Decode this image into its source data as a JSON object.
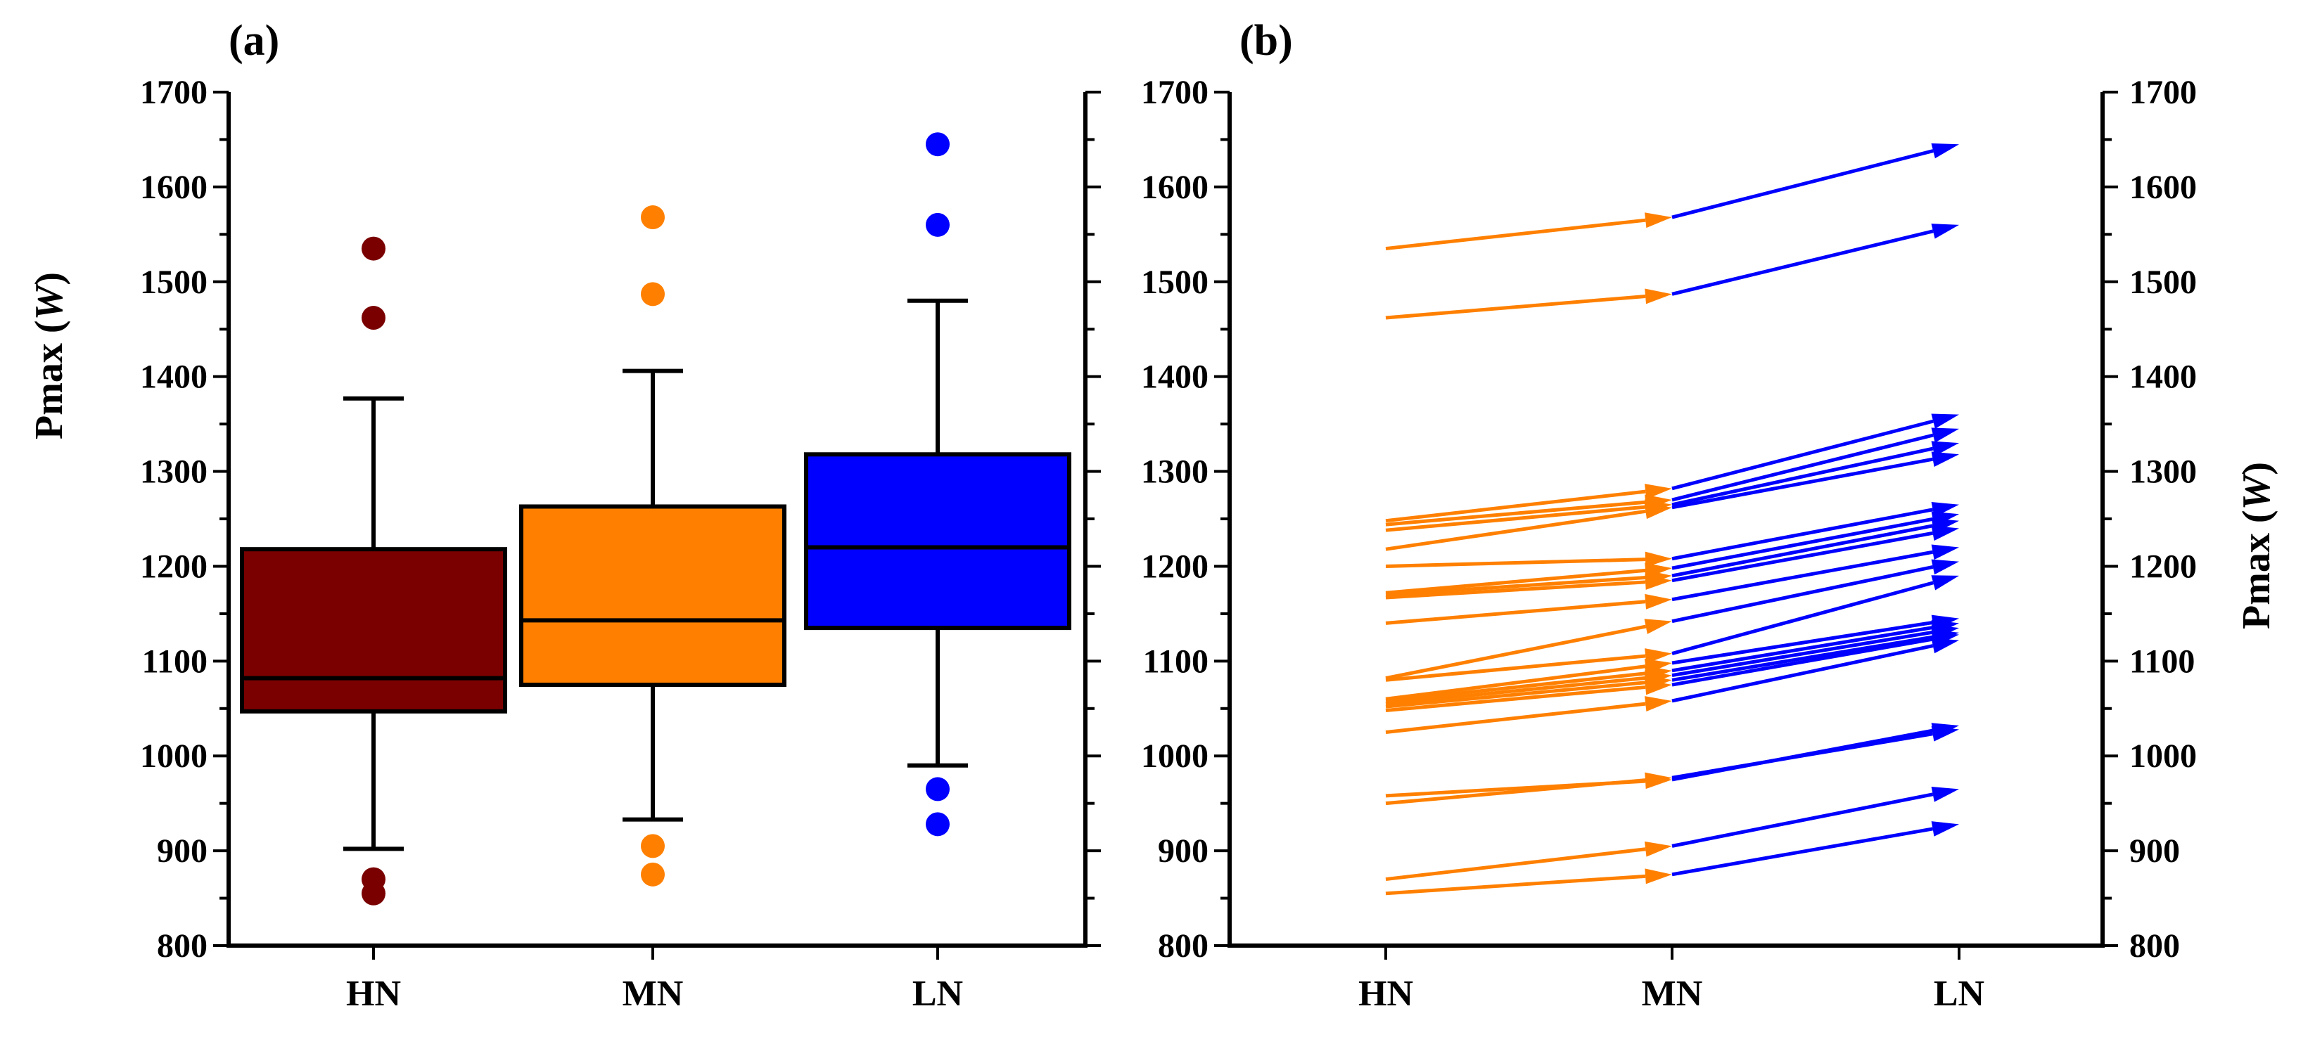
{
  "chart_data": [
    {
      "type": "box",
      "panel_label": "(a)",
      "ylabel_main": "Pmax",
      "ylabel_unit": "W",
      "ylim": [
        800,
        1700
      ],
      "yticks": [
        "800",
        "900",
        "1000",
        "1100",
        "1200",
        "1300",
        "1400",
        "1500",
        "1600",
        "1700"
      ],
      "categories": [
        "HN",
        "MN",
        "LN"
      ],
      "colors": [
        "#7a0000",
        "#ff8000",
        "#0000ff"
      ],
      "boxes": [
        {
          "category": "HN",
          "whisker_low": 902,
          "q1": 1047,
          "median": 1082,
          "q3": 1218,
          "whisker_high": 1377,
          "outliers": [
            1535,
            1462,
            870,
            855
          ]
        },
        {
          "category": "MN",
          "whisker_low": 933,
          "q1": 1075,
          "median": 1143,
          "q3": 1263,
          "whisker_high": 1406,
          "outliers": [
            1568,
            1487,
            905,
            875
          ]
        },
        {
          "category": "LN",
          "whisker_low": 990,
          "q1": 1135,
          "median": 1220,
          "q3": 1318,
          "whisker_high": 1480,
          "outliers": [
            1645,
            1560,
            965,
            928
          ]
        }
      ]
    },
    {
      "type": "line",
      "panel_label": "(b)",
      "ylabel_main": "Pmax",
      "ylabel_unit": "W",
      "ylim": [
        800,
        1700
      ],
      "yticks": [
        "800",
        "900",
        "1000",
        "1100",
        "1200",
        "1300",
        "1400",
        "1500",
        "1600",
        "1700"
      ],
      "categories": [
        "HN",
        "MN",
        "LN"
      ],
      "segment_colors": [
        "#ff8000",
        "#0000ff"
      ],
      "trajectories": [
        [
          1535,
          1568,
          1645
        ],
        [
          1462,
          1487,
          1560
        ],
        [
          1248,
          1282,
          1360
        ],
        [
          1244,
          1270,
          1345
        ],
        [
          1238,
          1265,
          1330
        ],
        [
          1218,
          1262,
          1318
        ],
        [
          1200,
          1208,
          1265
        ],
        [
          1172,
          1198,
          1255
        ],
        [
          1170,
          1190,
          1248
        ],
        [
          1167,
          1185,
          1240
        ],
        [
          1140,
          1165,
          1220
        ],
        [
          1082,
          1142,
          1205
        ],
        [
          1080,
          1108,
          1190
        ],
        [
          1060,
          1098,
          1145
        ],
        [
          1058,
          1090,
          1140
        ],
        [
          1055,
          1085,
          1135
        ],
        [
          1052,
          1080,
          1130
        ],
        [
          1048,
          1075,
          1128
        ],
        [
          1025,
          1058,
          1122
        ],
        [
          958,
          975,
          1032
        ],
        [
          950,
          977,
          1028
        ],
        [
          870,
          905,
          965
        ],
        [
          855,
          875,
          928
        ]
      ]
    }
  ]
}
